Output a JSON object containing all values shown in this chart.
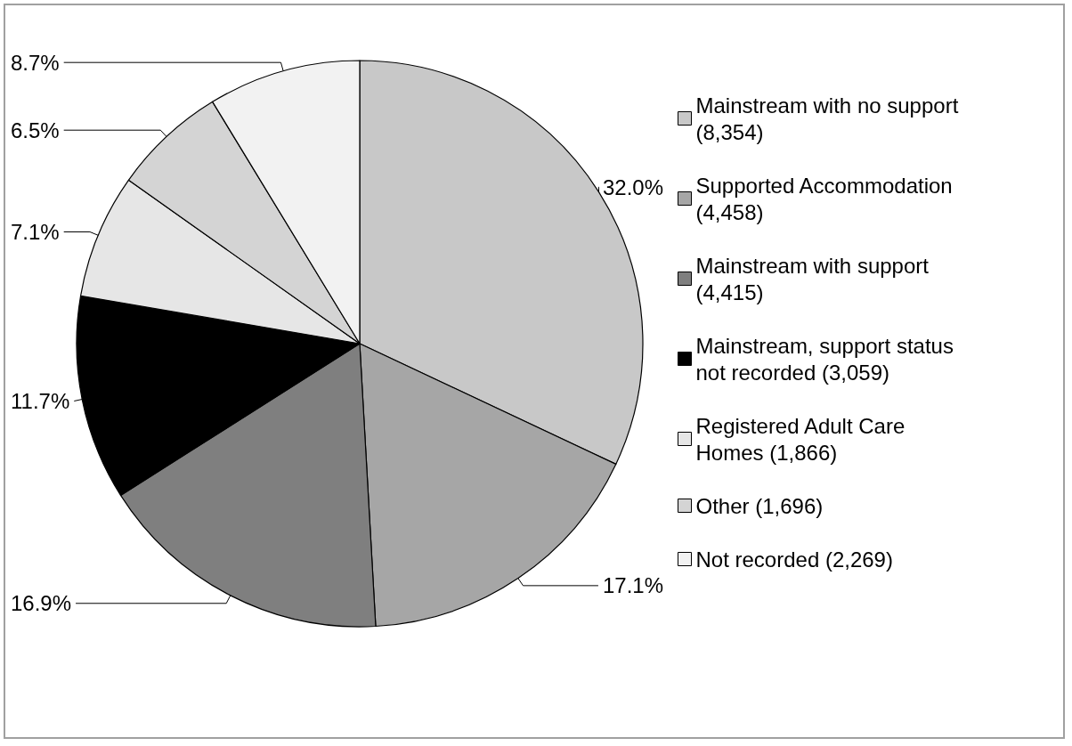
{
  "chart_data": {
    "type": "pie",
    "categories": [
      "Mainstream with no support (8,354)",
      "Supported Accommodation (4,458)",
      "Mainstream with support (4,415)",
      "Mainstream, support status not recorded (3,059)",
      "Registered Adult Care Homes (1,866)",
      "Other (1,696)",
      "Not recorded (2,269)"
    ],
    "values": [
      32.0,
      17.1,
      16.9,
      11.7,
      7.1,
      6.5,
      8.7
    ],
    "value_labels": [
      "32.0%",
      "17.1%",
      "16.9%",
      "11.7%",
      "7.1%",
      "6.5%",
      "8.7%"
    ],
    "colors": [
      "#c8c8c8",
      "#a6a6a6",
      "#7f7f7f",
      "#000000",
      "#e6e6e6",
      "#d4d4d4",
      "#f2f2f2"
    ],
    "legend": "right"
  }
}
